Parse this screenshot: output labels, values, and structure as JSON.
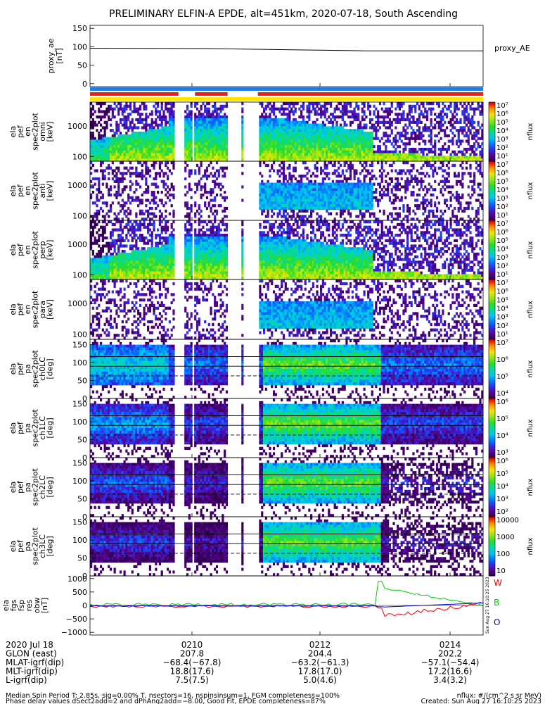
{
  "title": "PRELIMINARY ELFIN-A EPDE, alt=451km, 2020-07-18, South Ascending",
  "colors": {
    "bar_blue": "#1f7fe5",
    "bar_red": "#ee1c1c",
    "bar_yellow": "#ffe600",
    "line_red": "#ff0000",
    "line_green": "#00cc00",
    "line_blue": "#0000cc"
  },
  "chart_data": [
    {
      "type": "line",
      "name": "proxy_ae",
      "ylabel_lines": [
        "proxy_ae",
        "[nT]"
      ],
      "ylim": [
        -8,
        158
      ],
      "yticks": [
        "150",
        "100",
        "50",
        "0"
      ],
      "yticks_values": [
        150,
        100,
        50,
        0
      ],
      "legend": "proxy_AE",
      "x": [
        0,
        0.3,
        0.5,
        0.7,
        1.0
      ],
      "y": [
        96,
        95,
        92,
        89,
        89
      ]
    },
    {
      "type": "heatmap",
      "ylabel_lines": [
        "ela",
        "pef",
        "en",
        "spec2plot",
        "omni",
        "[keV]"
      ],
      "yticks": [
        "1000",
        "100"
      ],
      "yticks_values": [
        1000,
        100
      ],
      "colorbar_label": "nflux",
      "colorbar_ticks": [
        "10⁷",
        "10⁶",
        "10⁵",
        "10⁴",
        "10³",
        "10²",
        "10¹"
      ]
    },
    {
      "type": "heatmap",
      "ylabel_lines": [
        "ela",
        "pef",
        "en",
        "spec2plot",
        "anti",
        "[keV]"
      ],
      "yticks": [
        "1000",
        "100"
      ],
      "yticks_values": [
        1000,
        100
      ],
      "colorbar_label": "nflux",
      "colorbar_ticks": [
        "10⁷",
        "10⁶",
        "10⁵",
        "10⁴",
        "10³",
        "10²",
        "10¹"
      ]
    },
    {
      "type": "heatmap",
      "ylabel_lines": [
        "ela",
        "pef",
        "en",
        "spec2plot",
        "perp",
        "[keV]"
      ],
      "yticks": [
        "1000",
        "100"
      ],
      "yticks_values": [
        1000,
        100
      ],
      "colorbar_label": "nflux",
      "colorbar_ticks": [
        "10⁷",
        "10⁶",
        "10⁵",
        "10⁴",
        "10³",
        "10²",
        "10¹"
      ]
    },
    {
      "type": "heatmap",
      "ylabel_lines": [
        "ela",
        "pef",
        "en",
        "spec2plot",
        "para",
        "[keV]"
      ],
      "yticks": [
        "1000",
        "100"
      ],
      "yticks_values": [
        1000,
        100
      ],
      "colorbar_label": "nflux",
      "colorbar_ticks": [
        "10⁷",
        "10⁶",
        "10⁵",
        "10⁴",
        "10³",
        "10²",
        "10¹"
      ]
    },
    {
      "type": "heatmap",
      "ylabel_lines": [
        "ela",
        "pef",
        "pa",
        "spec2plot",
        "ch0LC",
        "[deg]"
      ],
      "yticks": [
        "150",
        "100",
        "50",
        "0"
      ],
      "yticks_values": [
        150,
        100,
        50,
        0
      ],
      "colorbar_label": "nflux",
      "colorbar_ticks": [
        "10⁷",
        "10⁶",
        "10⁵",
        "10⁴"
      ]
    },
    {
      "type": "heatmap",
      "ylabel_lines": [
        "ela",
        "pef",
        "pa",
        "spec2plot",
        "ch1LC",
        "[deg]"
      ],
      "yticks": [
        "150",
        "100",
        "50",
        "0"
      ],
      "yticks_values": [
        150,
        100,
        50,
        0
      ],
      "colorbar_label": "nflux",
      "colorbar_ticks": [
        "10⁶",
        "10⁵",
        "10⁴",
        "10³"
      ]
    },
    {
      "type": "heatmap",
      "ylabel_lines": [
        "ela",
        "pef",
        "pa",
        "spec2plot",
        "ch2LC",
        "[deg]"
      ],
      "yticks": [
        "150",
        "100",
        "50",
        "0"
      ],
      "yticks_values": [
        150,
        100,
        50,
        0
      ],
      "colorbar_label": "nflux",
      "colorbar_ticks": [
        "10⁶",
        "10⁵",
        "10⁴",
        "10³",
        "10²"
      ]
    },
    {
      "type": "heatmap",
      "ylabel_lines": [
        "ela",
        "pef",
        "pa",
        "spec2plot",
        "ch3LC",
        "[deg]"
      ],
      "yticks": [
        "150",
        "100",
        "50",
        "0"
      ],
      "yticks_values": [
        150,
        100,
        50,
        0
      ],
      "colorbar_label": "nflux",
      "colorbar_ticks": [
        "10000",
        "1000",
        "100",
        "10"
      ]
    },
    {
      "type": "line",
      "name": "fgs",
      "ylabel_lines": [
        "ela",
        "fgs",
        "fsp",
        "res",
        "obw",
        "[nT]"
      ],
      "ylim": [
        -1100,
        1100
      ],
      "yticks": [
        "1000",
        "500",
        "0",
        "−500",
        "−1000"
      ],
      "yticks_values": [
        1000,
        500,
        0,
        -500,
        -1000
      ],
      "legend": [
        "W",
        "B",
        "O"
      ]
    }
  ],
  "xaxis": {
    "ticks": [
      "0210",
      "0212",
      "0214"
    ],
    "rows": [
      {
        "label": "2020 Jul 18",
        "values": [
          "",
          "",
          ""
        ]
      },
      {
        "label": "GLON (east)",
        "values": [
          "207.8",
          "204.4",
          "202.2"
        ]
      },
      {
        "label": "MLAT-igrf(dip)",
        "values": [
          "−68.4(−67.8)",
          "−63.2(−61.3)",
          "−57.1(−54.4)"
        ]
      },
      {
        "label": "MLT-igrf(dip)",
        "values": [
          "18.8(17.6)",
          "17.8(17.0)",
          "17.2(16.6)"
        ]
      },
      {
        "label": "L-igrf(dip)",
        "values": [
          "7.5(7.5)",
          "5.0(4.6)",
          "3.4(3.2)"
        ]
      }
    ]
  },
  "footer": {
    "left1": "Median Spin Period T: 2.85s, sig=0.00% T, nsectors=16, nspinsinsum=1, FGM completeness=100%",
    "left2": "Phase delay values dSect2add=2 and dPhAng2add=−8.00, Good Fit, EPDE completeness=87%",
    "right1": "nflux: #/(cm^2 s sr MeV)",
    "right2": "Created: Sun Aug 27 16:10:25 2023",
    "side_stamp": "Sun Aug 27 16:10:25 2023"
  }
}
